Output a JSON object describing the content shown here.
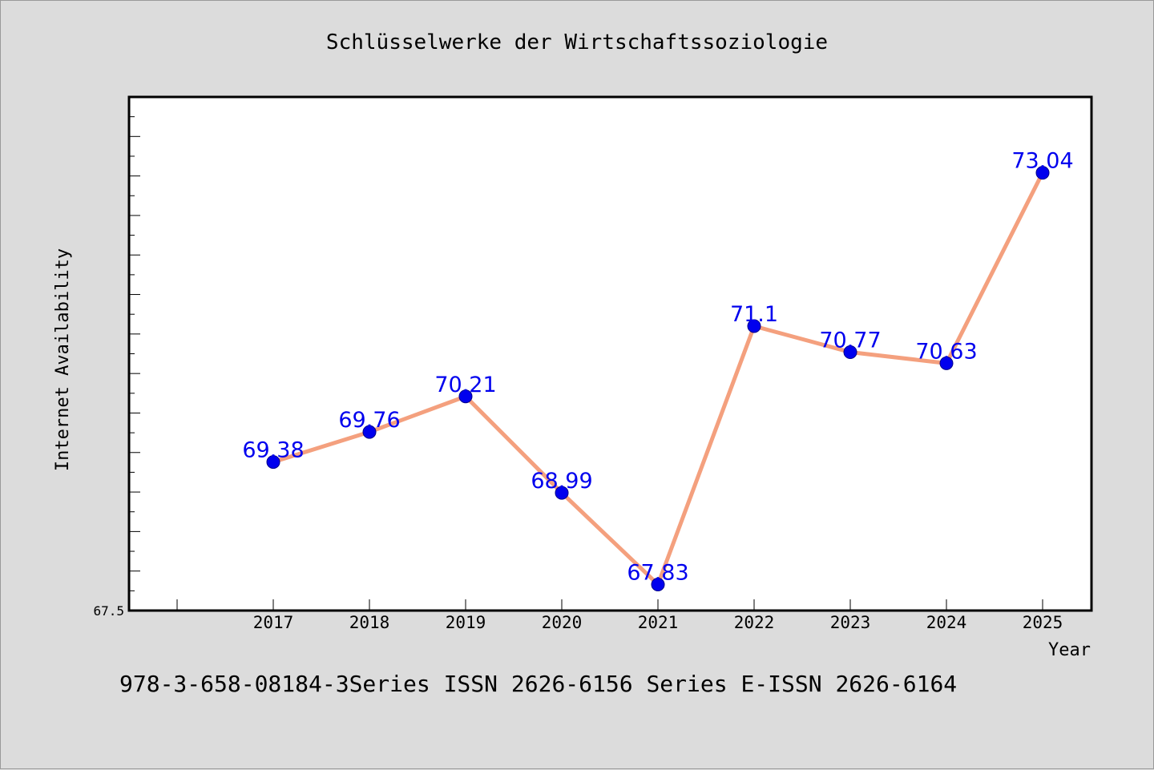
{
  "chart_data": {
    "type": "line",
    "title": "Schlüsselwerke der Wirtschaftssoziologie",
    "xlabel": "Year",
    "ylabel": "Internet Availability",
    "categories": [
      "2017",
      "2018",
      "2019",
      "2020",
      "2021",
      "2022",
      "2023",
      "2024",
      "2025"
    ],
    "series": [
      {
        "values": [
          69.38,
          69.76,
          70.21,
          68.99,
          67.83,
          71.1,
          70.77,
          70.63,
          73.04
        ],
        "labels": [
          "69.38",
          "69.76",
          "70.21",
          "68.99",
          "67.83",
          "71.1",
          "70.77",
          "70.63",
          "73.04"
        ],
        "line_color": "#f4a07e",
        "marker_color": "#0000ee",
        "label_color": "#0000ee"
      }
    ],
    "ylim": [
      67.5,
      74
    ],
    "y_tick_labels": [
      "67.5"
    ],
    "grid": false,
    "legend": "none"
  },
  "footer_text": "978-3-658-08184-3Series ISSN 2626-6156 Series E-ISSN 2626-6164",
  "colors": {
    "background": "#dcdcdc",
    "plot_background": "#ffffff",
    "axis": "#000000",
    "text": "#000000"
  }
}
